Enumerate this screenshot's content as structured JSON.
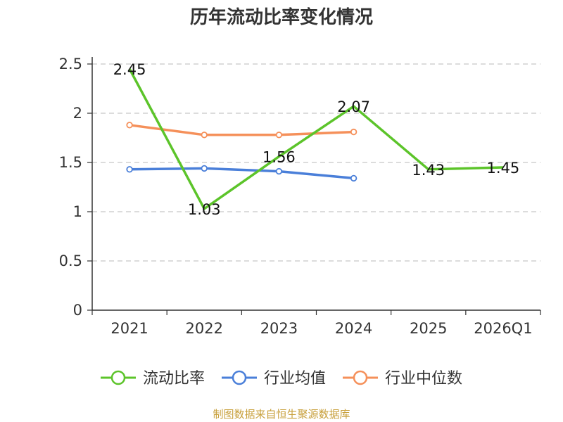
{
  "chart_data": {
    "type": "line",
    "title": "历年流动比率变化情况",
    "categories": [
      "2021",
      "2022",
      "2023",
      "2024",
      "2025",
      "2026Q1"
    ],
    "ylim": [
      0,
      2.5
    ],
    "yticks": [
      "0",
      "0.5",
      "1",
      "1.5",
      "2",
      "2.5"
    ],
    "ytick_values": [
      0,
      0.5,
      1,
      1.5,
      2,
      2.5
    ],
    "grid": true,
    "legend_position": "bottom",
    "series": [
      {
        "name": "流动比率",
        "color": "#5cc42a",
        "values": [
          2.45,
          1.03,
          1.56,
          2.07,
          1.43,
          1.45
        ],
        "labels": [
          "2.45",
          "1.03",
          "1.56",
          "2.07",
          "1.43",
          "1.45"
        ],
        "show_markers": false
      },
      {
        "name": "行业均值",
        "color": "#4a7fd9",
        "values": [
          1.43,
          1.44,
          1.41,
          1.34,
          null,
          null
        ],
        "show_markers": true
      },
      {
        "name": "行业中位数",
        "color": "#f5905a",
        "values": [
          1.88,
          1.78,
          1.78,
          1.81,
          null,
          null
        ],
        "show_markers": true
      }
    ]
  },
  "source_text": "制图数据来自恒生聚源数据库"
}
